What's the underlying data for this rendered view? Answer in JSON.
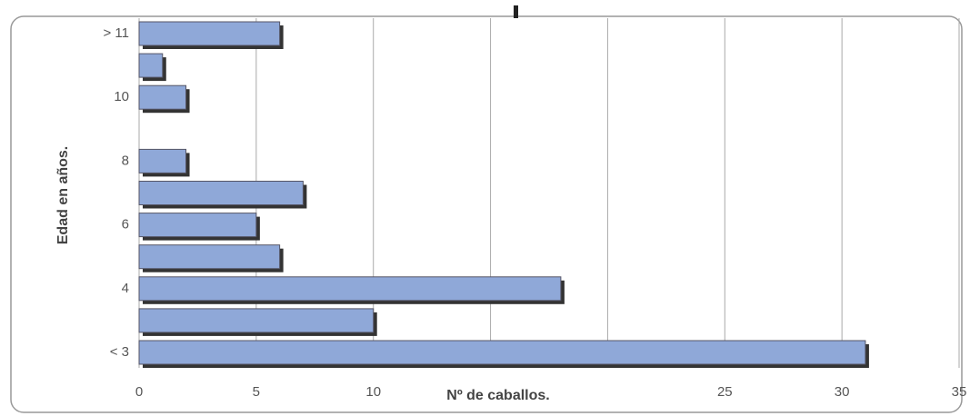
{
  "chart_data": {
    "type": "hbar",
    "categories": [
      "< 3",
      null,
      "4",
      null,
      "6",
      null,
      "8",
      null,
      "10",
      null,
      "> 11"
    ],
    "values": [
      31,
      10,
      18,
      6,
      5,
      7,
      2,
      0,
      2,
      1,
      6
    ],
    "color": "#8fa8d8",
    "xlim": [
      0,
      35
    ],
    "xticks": [
      0,
      5,
      10,
      25,
      30,
      35
    ],
    "xgrid": [
      0,
      5,
      10,
      15,
      20,
      25,
      30,
      35
    ],
    "grid": true,
    "xlabel": "Nº de caballos.",
    "ylabel": "Edad en años."
  }
}
